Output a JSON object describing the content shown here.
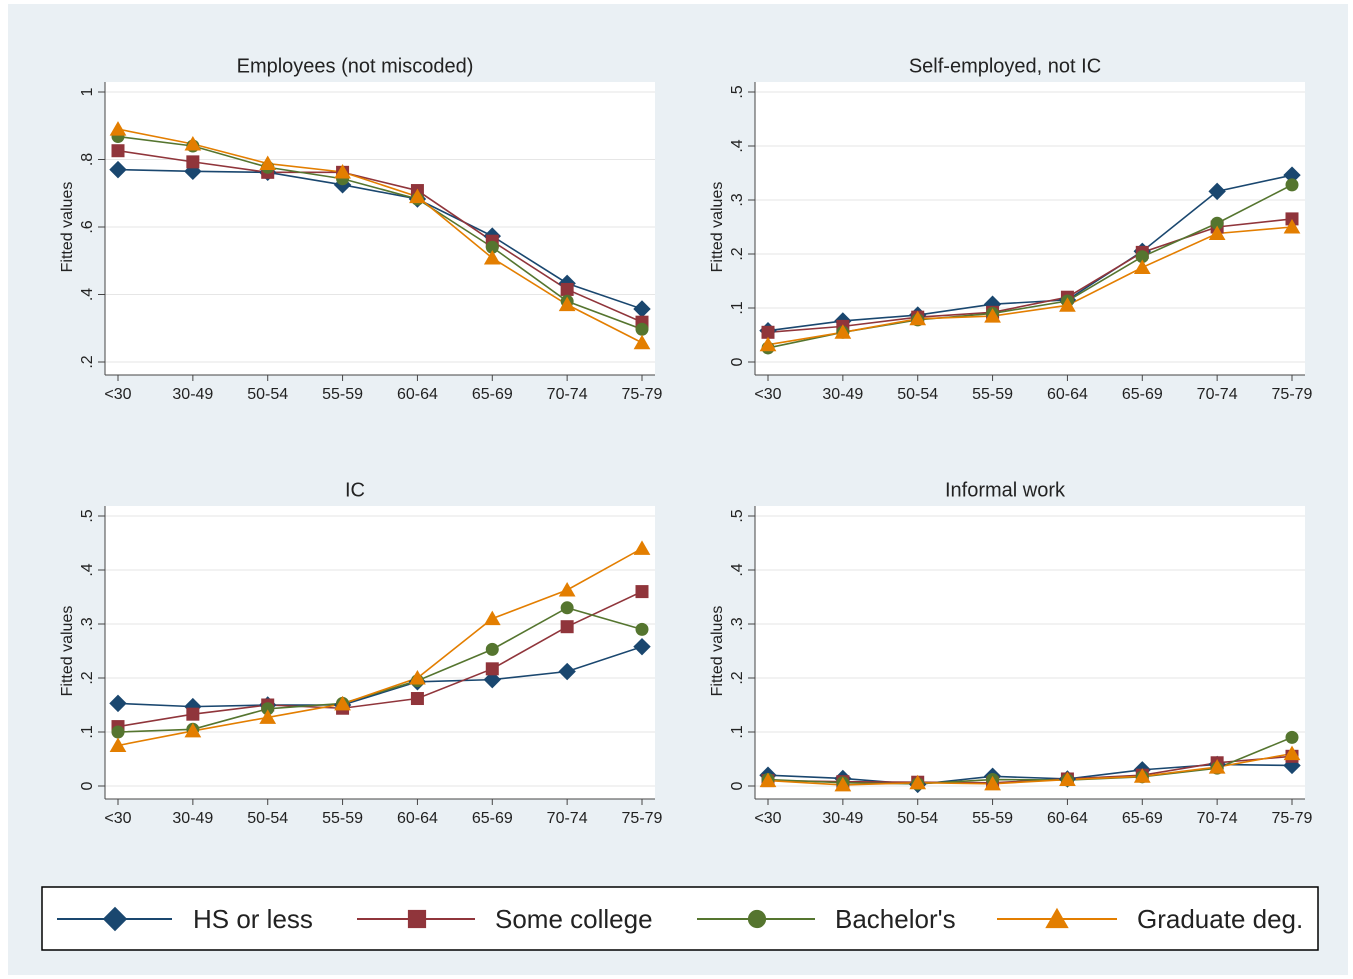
{
  "chart_data": [
    {
      "type": "line",
      "title": "Employees (not miscoded)",
      "ytitle": "Fitted values",
      "categories": [
        "<30",
        "30-49",
        "50-54",
        "55-59",
        "60-64",
        "65-69",
        "70-74",
        "75-79"
      ],
      "ylim": [
        0.2,
        1
      ],
      "yticks": [
        {
          "value": 0.2,
          "label": ".2"
        },
        {
          "value": 0.4,
          "label": ".4"
        },
        {
          "value": 0.6,
          "label": ".6"
        },
        {
          "value": 0.8,
          "label": ".8"
        },
        1
      ],
      "grid": true,
      "series": [
        {
          "name": "HS or less",
          "color": "#1a476f",
          "marker": "diamond",
          "values": [
            0.77,
            0.765,
            0.762,
            0.725,
            0.683,
            0.573,
            0.433,
            0.357
          ]
        },
        {
          "name": "Some college",
          "color": "#90353b",
          "marker": "square",
          "values": [
            0.826,
            0.793,
            0.762,
            0.762,
            0.708,
            0.558,
            0.415,
            0.318
          ]
        },
        {
          "name": "Bachelor's",
          "color": "#55752f",
          "marker": "circle",
          "values": [
            0.868,
            0.84,
            0.777,
            0.743,
            0.683,
            0.54,
            0.38,
            0.297
          ]
        },
        {
          "name": "Graduate deg.",
          "color": "#e37e00",
          "marker": "triangle",
          "values": [
            0.89,
            0.846,
            0.788,
            0.763,
            0.69,
            0.508,
            0.37,
            0.257
          ]
        }
      ]
    },
    {
      "type": "line",
      "title": "Self-employed, not IC",
      "ytitle": "Fitted values",
      "categories": [
        "<30",
        "30-49",
        "50-54",
        "55-59",
        "60-64",
        "65-69",
        "70-74",
        "75-79"
      ],
      "ylim": [
        0,
        0.5
      ],
      "yticks": [
        0,
        {
          "value": 0.1,
          "label": ".1"
        },
        {
          "value": 0.2,
          "label": ".2"
        },
        {
          "value": 0.3,
          "label": ".3"
        },
        {
          "value": 0.4,
          "label": ".4"
        },
        {
          "value": 0.5,
          "label": ".5"
        }
      ],
      "grid": true,
      "series": [
        {
          "name": "HS or less",
          "color": "#1a476f",
          "marker": "diamond",
          "values": [
            0.058,
            0.076,
            0.087,
            0.107,
            0.115,
            0.205,
            0.316,
            0.346
          ]
        },
        {
          "name": "Some college",
          "color": "#90353b",
          "marker": "square",
          "values": [
            0.055,
            0.066,
            0.083,
            0.092,
            0.12,
            0.203,
            0.25,
            0.265
          ]
        },
        {
          "name": "Bachelor's",
          "color": "#55752f",
          "marker": "circle",
          "values": [
            0.026,
            0.055,
            0.078,
            0.09,
            0.113,
            0.195,
            0.257,
            0.328
          ]
        },
        {
          "name": "Graduate deg.",
          "color": "#e37e00",
          "marker": "triangle",
          "values": [
            0.032,
            0.055,
            0.08,
            0.085,
            0.105,
            0.175,
            0.238,
            0.25
          ]
        }
      ]
    },
    {
      "type": "line",
      "title": "IC",
      "ytitle": "Fitted values",
      "categories": [
        "<30",
        "30-49",
        "50-54",
        "55-59",
        "60-64",
        "65-69",
        "70-74",
        "75-79"
      ],
      "ylim": [
        0,
        0.5
      ],
      "yticks": [
        0,
        {
          "value": 0.1,
          "label": ".1"
        },
        {
          "value": 0.2,
          "label": ".2"
        },
        {
          "value": 0.3,
          "label": ".3"
        },
        {
          "value": 0.4,
          "label": ".4"
        },
        {
          "value": 0.5,
          "label": ".5"
        }
      ],
      "grid": true,
      "series": [
        {
          "name": "HS or less",
          "color": "#1a476f",
          "marker": "diamond",
          "values": [
            0.153,
            0.147,
            0.15,
            0.15,
            0.193,
            0.197,
            0.212,
            0.258
          ]
        },
        {
          "name": "Some college",
          "color": "#90353b",
          "marker": "square",
          "values": [
            0.11,
            0.133,
            0.15,
            0.144,
            0.162,
            0.217,
            0.295,
            0.36
          ]
        },
        {
          "name": "Bachelor's",
          "color": "#55752f",
          "marker": "circle",
          "values": [
            0.1,
            0.105,
            0.143,
            0.153,
            0.195,
            0.253,
            0.33,
            0.29
          ]
        },
        {
          "name": "Graduate deg.",
          "color": "#e37e00",
          "marker": "triangle",
          "values": [
            0.075,
            0.102,
            0.127,
            0.152,
            0.2,
            0.31,
            0.363,
            0.44
          ]
        }
      ]
    },
    {
      "type": "line",
      "title": "Informal work",
      "ytitle": "Fitted values",
      "categories": [
        "<30",
        "30-49",
        "50-54",
        "55-59",
        "60-64",
        "65-69",
        "70-74",
        "75-79"
      ],
      "ylim": [
        0,
        0.5
      ],
      "yticks": [
        0,
        {
          "value": 0.1,
          "label": ".1"
        },
        {
          "value": 0.2,
          "label": ".2"
        },
        {
          "value": 0.3,
          "label": ".3"
        },
        {
          "value": 0.4,
          "label": ".4"
        },
        {
          "value": 0.5,
          "label": ".5"
        }
      ],
      "grid": true,
      "series": [
        {
          "name": "HS or less",
          "color": "#1a476f",
          "marker": "diamond",
          "values": [
            0.02,
            0.014,
            0.003,
            0.018,
            0.013,
            0.03,
            0.04,
            0.038
          ]
        },
        {
          "name": "Some college",
          "color": "#90353b",
          "marker": "square",
          "values": [
            0.01,
            0.008,
            0.007,
            0.006,
            0.013,
            0.02,
            0.043,
            0.055
          ]
        },
        {
          "name": "Bachelor's",
          "color": "#55752f",
          "marker": "circle",
          "values": [
            0.012,
            0.006,
            0.004,
            0.012,
            0.011,
            0.017,
            0.033,
            0.09
          ]
        },
        {
          "name": "Graduate deg.",
          "color": "#e37e00",
          "marker": "triangle",
          "values": [
            0.01,
            0.002,
            0.006,
            0.004,
            0.012,
            0.018,
            0.035,
            0.06
          ]
        }
      ]
    }
  ]
}
